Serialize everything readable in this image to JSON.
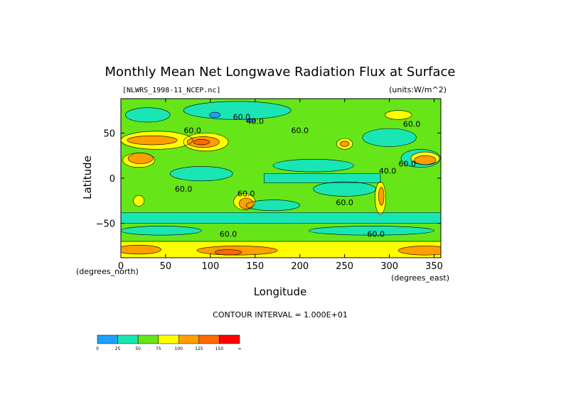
{
  "chart_data": {
    "type": "heatmap",
    "title": "Monthly Mean Net Longwave Radiation Flux at Surface",
    "file_label": "[NLWRS_1998-11_NCEP.nc]",
    "units_label": "(units:W/m^2)",
    "xlabel": "Longitude",
    "ylabel": "Latitude",
    "x_units": "(degrees_east)",
    "y_units": "(degrees_north)",
    "xlim": [
      0,
      357.5
    ],
    "ylim": [
      -88,
      88
    ],
    "x_ticks": [
      0,
      50,
      100,
      150,
      200,
      250,
      300,
      350
    ],
    "y_ticks": [
      -50,
      0,
      50
    ],
    "contour_interval_text": "CONTOUR INTERVAL = 1.000E+01",
    "contour_labels": [
      {
        "text": "60.0",
        "lon": 80,
        "lat": 50
      },
      {
        "text": "60.0",
        "lon": 135,
        "lat": 65
      },
      {
        "text": "60.0",
        "lon": 200,
        "lat": 50
      },
      {
        "text": "60.0",
        "lon": 320,
        "lat": 13
      },
      {
        "text": "60.0",
        "lon": 325,
        "lat": 57
      },
      {
        "text": "60.0",
        "lon": 70,
        "lat": -15
      },
      {
        "text": "60.0",
        "lon": 140,
        "lat": -20
      },
      {
        "text": "60.0",
        "lon": 250,
        "lat": -30
      },
      {
        "text": "60.0",
        "lon": 120,
        "lat": -65
      },
      {
        "text": "60.0",
        "lon": 285,
        "lat": -65
      },
      {
        "text": "40.0",
        "lon": 298,
        "lat": 5
      },
      {
        "text": "40.0",
        "lon": 150,
        "lat": 60
      }
    ],
    "colorbar": {
      "levels": [
        "0",
        "25",
        "50",
        "75",
        "100",
        "125",
        "150",
        "∞"
      ],
      "colors": [
        "#1ea0ff",
        "#19e6b4",
        "#66e619",
        "#ffff00",
        "#ff9f00",
        "#ff6a00",
        "#ff0000"
      ]
    },
    "regions": [
      {
        "level": 1,
        "shape": "band",
        "lat": [
          -50,
          -38
        ],
        "lon": [
          0,
          357.5
        ]
      },
      {
        "level": 1,
        "shape": "band",
        "lat": [
          -5,
          5
        ],
        "lon": [
          160,
          290
        ]
      },
      {
        "level": 1,
        "shape": "ellipse",
        "lon": 215,
        "lat": 14,
        "rx": 45,
        "ry": 7
      },
      {
        "level": 1,
        "shape": "ellipse",
        "lon": 250,
        "lat": -12,
        "rx": 35,
        "ry": 8
      },
      {
        "level": 1,
        "shape": "ellipse",
        "lon": 90,
        "lat": 5,
        "rx": 35,
        "ry": 8
      },
      {
        "level": 1,
        "shape": "ellipse",
        "lon": 170,
        "lat": -30,
        "rx": 30,
        "ry": 6
      },
      {
        "level": 1,
        "shape": "ellipse",
        "lon": 335,
        "lat": 22,
        "rx": 22,
        "ry": 10
      },
      {
        "level": 1,
        "shape": "ellipse",
        "lon": 300,
        "lat": 45,
        "rx": 30,
        "ry": 10
      },
      {
        "level": 1,
        "shape": "ellipse",
        "lon": 130,
        "lat": 75,
        "rx": 60,
        "ry": 10
      },
      {
        "level": 1,
        "shape": "ellipse",
        "lon": 30,
        "lat": 70,
        "rx": 25,
        "ry": 8
      },
      {
        "level": 1,
        "shape": "ellipse",
        "lon": 45,
        "lat": -58,
        "rx": 45,
        "ry": 5
      },
      {
        "level": 1,
        "shape": "ellipse",
        "lon": 280,
        "lat": -58,
        "rx": 70,
        "ry": 5
      },
      {
        "level": 0,
        "shape": "ellipse",
        "lon": 105,
        "lat": 70,
        "rx": 6,
        "ry": 3
      },
      {
        "level": 0,
        "shape": "ellipse",
        "lon": 145,
        "lat": 64,
        "rx": 5,
        "ry": 2
      },
      {
        "level": 3,
        "shape": "ellipse",
        "lon": 40,
        "lat": 42,
        "rx": 40,
        "ry": 10
      },
      {
        "level": 3,
        "shape": "ellipse",
        "lon": 20,
        "lat": 20,
        "rx": 18,
        "ry": 8
      },
      {
        "level": 4,
        "shape": "ellipse",
        "lon": 22,
        "lat": 22,
        "rx": 14,
        "ry": 6
      },
      {
        "level": 4,
        "shape": "ellipse",
        "lon": 35,
        "lat": 42,
        "rx": 28,
        "ry": 5
      },
      {
        "level": 3,
        "shape": "ellipse",
        "lon": 340,
        "lat": 22,
        "rx": 16,
        "ry": 7
      },
      {
        "level": 4,
        "shape": "ellipse",
        "lon": 340,
        "lat": 20,
        "rx": 12,
        "ry": 5
      },
      {
        "level": 3,
        "shape": "ellipse",
        "lon": 95,
        "lat": 40,
        "rx": 25,
        "ry": 10
      },
      {
        "level": 4,
        "shape": "ellipse",
        "lon": 92,
        "lat": 40,
        "rx": 18,
        "ry": 6
      },
      {
        "level": 5,
        "shape": "ellipse",
        "lon": 90,
        "lat": 40,
        "rx": 9,
        "ry": 3
      },
      {
        "level": 3,
        "shape": "ellipse",
        "lon": 250,
        "lat": 38,
        "rx": 9,
        "ry": 6
      },
      {
        "level": 4,
        "shape": "ellipse",
        "lon": 250,
        "lat": 38,
        "rx": 5,
        "ry": 3
      },
      {
        "level": 3,
        "shape": "ellipse",
        "lon": 138,
        "lat": -26,
        "rx": 12,
        "ry": 9
      },
      {
        "level": 4,
        "shape": "ellipse",
        "lon": 140,
        "lat": -28,
        "rx": 8,
        "ry": 6
      },
      {
        "level": 3,
        "shape": "ellipse",
        "lon": 290,
        "lat": -22,
        "rx": 6,
        "ry": 18
      },
      {
        "level": 4,
        "shape": "ellipse",
        "lon": 291,
        "lat": -20,
        "rx": 3,
        "ry": 10
      },
      {
        "level": 3,
        "shape": "ellipse",
        "lon": 20,
        "lat": -25,
        "rx": 6,
        "ry": 6
      },
      {
        "level": 3,
        "shape": "ellipse",
        "lon": 310,
        "lat": 70,
        "rx": 15,
        "ry": 5
      },
      {
        "level": 3,
        "shape": "band",
        "lat": [
          -88,
          -70
        ],
        "lon": [
          0,
          357.5
        ]
      },
      {
        "level": 4,
        "shape": "ellipse",
        "lon": 20,
        "lat": -79,
        "rx": 25,
        "ry": 5
      },
      {
        "level": 4,
        "shape": "ellipse",
        "lon": 130,
        "lat": -80,
        "rx": 45,
        "ry": 5
      },
      {
        "level": 4,
        "shape": "ellipse",
        "lon": 340,
        "lat": -80,
        "rx": 30,
        "ry": 5
      },
      {
        "level": 5,
        "shape": "ellipse",
        "lon": 120,
        "lat": -82,
        "rx": 15,
        "ry": 3
      }
    ]
  }
}
